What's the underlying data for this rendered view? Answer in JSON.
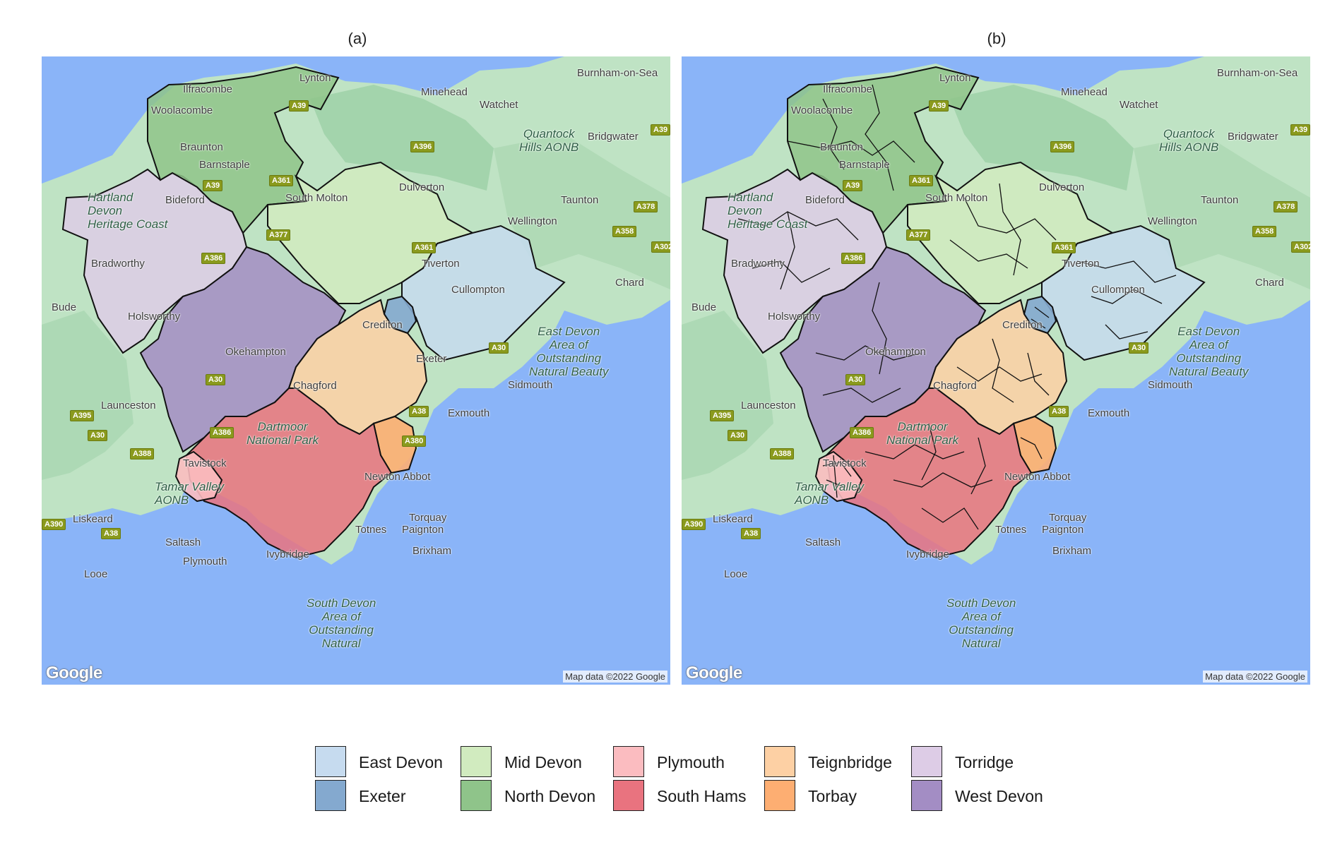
{
  "panels": [
    {
      "title": "(a)"
    },
    {
      "title": "(b)"
    }
  ],
  "map": {
    "attribution": "Map data ©2022 Google",
    "logo": "Google",
    "places": [
      "Ilfracombe",
      "Lynton",
      "Minehead",
      "Burnham-on-Sea",
      "Woolacombe",
      "Watchet",
      "Quantock",
      "Hills AONB",
      "Bridgwater",
      "Braunton",
      "Barnstaple",
      "South Molton",
      "Dulverton",
      "Taunton",
      "Hartland",
      "Devon",
      "Heritage Coast",
      "Bideford",
      "Wellington",
      "Bradworthy",
      "Tiverton",
      "Chard",
      "Bude",
      "Cullompton",
      "Holsworthy",
      "Crediton",
      "East Devon",
      "Area of",
      "Outstanding",
      "Natural Beauty",
      "Okehampton",
      "Exeter",
      "Chagford",
      "Sidmouth",
      "Launceston",
      "Exmouth",
      "Dartmoor",
      "National Park",
      "Tavistock",
      "Newton Abbot",
      "Tamar Valley",
      "AONB",
      "Liskeard",
      "Torquay",
      "Saltash",
      "Totnes",
      "Paignton",
      "Plymouth",
      "Ivybridge",
      "Brixham",
      "Looe",
      "South Devon",
      "Outstanding",
      "Natural"
    ],
    "roads": [
      "A39",
      "A396",
      "A361",
      "A377",
      "A386",
      "A30",
      "A395",
      "A388",
      "A38",
      "A380",
      "A378",
      "A358",
      "A302",
      "A390"
    ]
  },
  "legend": {
    "items": [
      {
        "label": "East Devon",
        "color": "#c6dbef"
      },
      {
        "label": "Exeter",
        "color": "#84a9cf"
      },
      {
        "label": "Mid Devon",
        "color": "#d1ebbf"
      },
      {
        "label": "North Devon",
        "color": "#8fc48a"
      },
      {
        "label": "Plymouth",
        "color": "#fbbcc0"
      },
      {
        "label": "South Hams",
        "color": "#e9737f"
      },
      {
        "label": "Teignbridge",
        "color": "#fdd0a4"
      },
      {
        "label": "Torbay",
        "color": "#fdae72"
      },
      {
        "label": "Torridge",
        "color": "#ddcce6"
      },
      {
        "label": "West Devon",
        "color": "#a38dc4"
      }
    ]
  },
  "colors": {
    "sea": "#8ab4f8",
    "land": "#bfe3c4",
    "land_dark": "#9ccfa6",
    "boundary": "#111111"
  }
}
